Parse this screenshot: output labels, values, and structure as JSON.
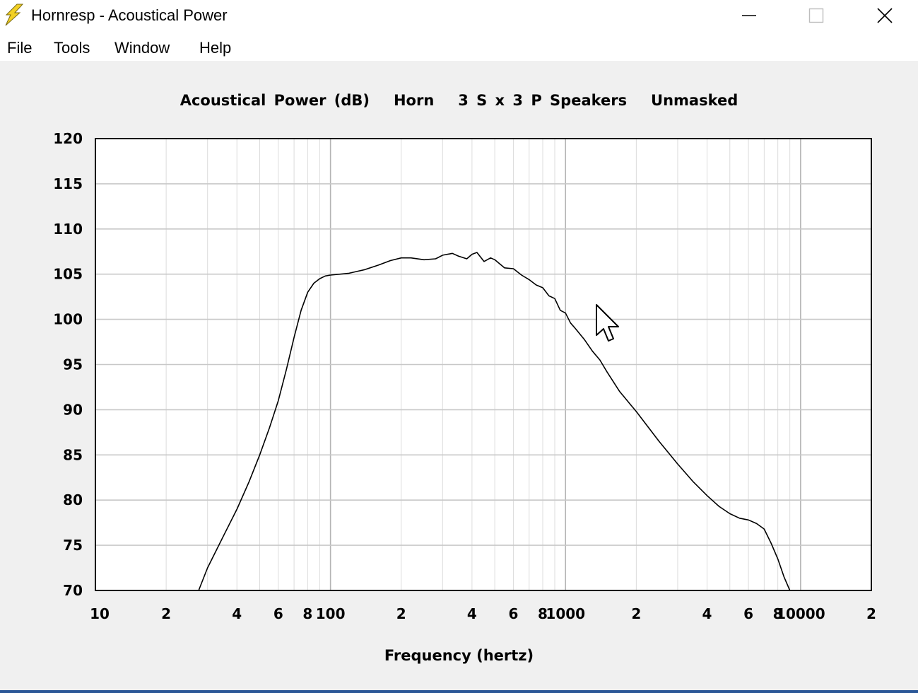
{
  "window": {
    "title": "Hornresp - Acoustical Power",
    "icon": "lightning-bolt-icon",
    "controls": [
      "minimize-icon",
      "maximize-icon",
      "close-icon"
    ]
  },
  "menu": {
    "items": [
      "File",
      "Tools",
      "Window",
      "Help"
    ]
  },
  "colors": {
    "background": "#f0f0f0",
    "plot_background": "#ffffff",
    "grid": "#c8c8c8",
    "curve": "#000000",
    "accent": "#f2d024"
  },
  "chart_data": {
    "type": "line",
    "title": "Acoustical Power (dB)   Horn   3 S x 3 P Speakers   Unmasked",
    "xlabel": "Frequency (hertz)",
    "ylabel": "",
    "x_scale": "log",
    "xlim": [
      10,
      20000
    ],
    "ylim": [
      70,
      120
    ],
    "grid": true,
    "y_ticks": [
      120,
      115,
      110,
      105,
      100,
      95,
      90,
      85,
      80,
      75,
      70
    ],
    "x_ticks": [
      {
        "value": 10,
        "label": "10"
      },
      {
        "value": 20,
        "label": "2"
      },
      {
        "value": 40,
        "label": "4"
      },
      {
        "value": 60,
        "label": "6"
      },
      {
        "value": 80,
        "label": "8"
      },
      {
        "value": 100,
        "label": "100"
      },
      {
        "value": 200,
        "label": "2"
      },
      {
        "value": 400,
        "label": "4"
      },
      {
        "value": 600,
        "label": "6"
      },
      {
        "value": 800,
        "label": "8"
      },
      {
        "value": 1000,
        "label": "1000"
      },
      {
        "value": 2000,
        "label": "2"
      },
      {
        "value": 4000,
        "label": "4"
      },
      {
        "value": 6000,
        "label": "6"
      },
      {
        "value": 8000,
        "label": "8"
      },
      {
        "value": 10000,
        "label": "10000"
      },
      {
        "value": 20000,
        "label": "2"
      }
    ],
    "series": [
      {
        "x": [
          27.5,
          30,
          35,
          40,
          45,
          50,
          55,
          60,
          65,
          70,
          75,
          80,
          85,
          90,
          95,
          100,
          110,
          120,
          140,
          160,
          180,
          200,
          220,
          250,
          280,
          300,
          330,
          350,
          380,
          400,
          420,
          450,
          480,
          500,
          550,
          600,
          650,
          700,
          750,
          800,
          850,
          900,
          950,
          1000,
          1050,
          1100,
          1200,
          1300,
          1400,
          1500,
          1700,
          2000,
          2500,
          3000,
          3500,
          4000,
          4500,
          5000,
          5500,
          6000,
          6500,
          7000,
          7500,
          8000,
          8500,
          9000
        ],
        "y": [
          70,
          72.5,
          76,
          79,
          82,
          85,
          88,
          91,
          94.5,
          98,
          101,
          103,
          104,
          104.5,
          104.8,
          104.9,
          105,
          105.1,
          105.5,
          106,
          106.5,
          106.8,
          106.8,
          106.6,
          106.7,
          107.1,
          107.3,
          107.0,
          106.7,
          107.2,
          107.4,
          106.4,
          106.8,
          106.6,
          105.7,
          105.6,
          104.9,
          104.4,
          103.8,
          103.5,
          102.6,
          102.3,
          101.0,
          100.7,
          99.6,
          99.0,
          97.8,
          96.5,
          95.5,
          94.2,
          92.0,
          89.8,
          86.5,
          84.0,
          82.0,
          80.5,
          79.3,
          78.5,
          78.0,
          77.8,
          77.4,
          76.8,
          75.2,
          73.5,
          71.5,
          70
        ]
      }
    ]
  }
}
